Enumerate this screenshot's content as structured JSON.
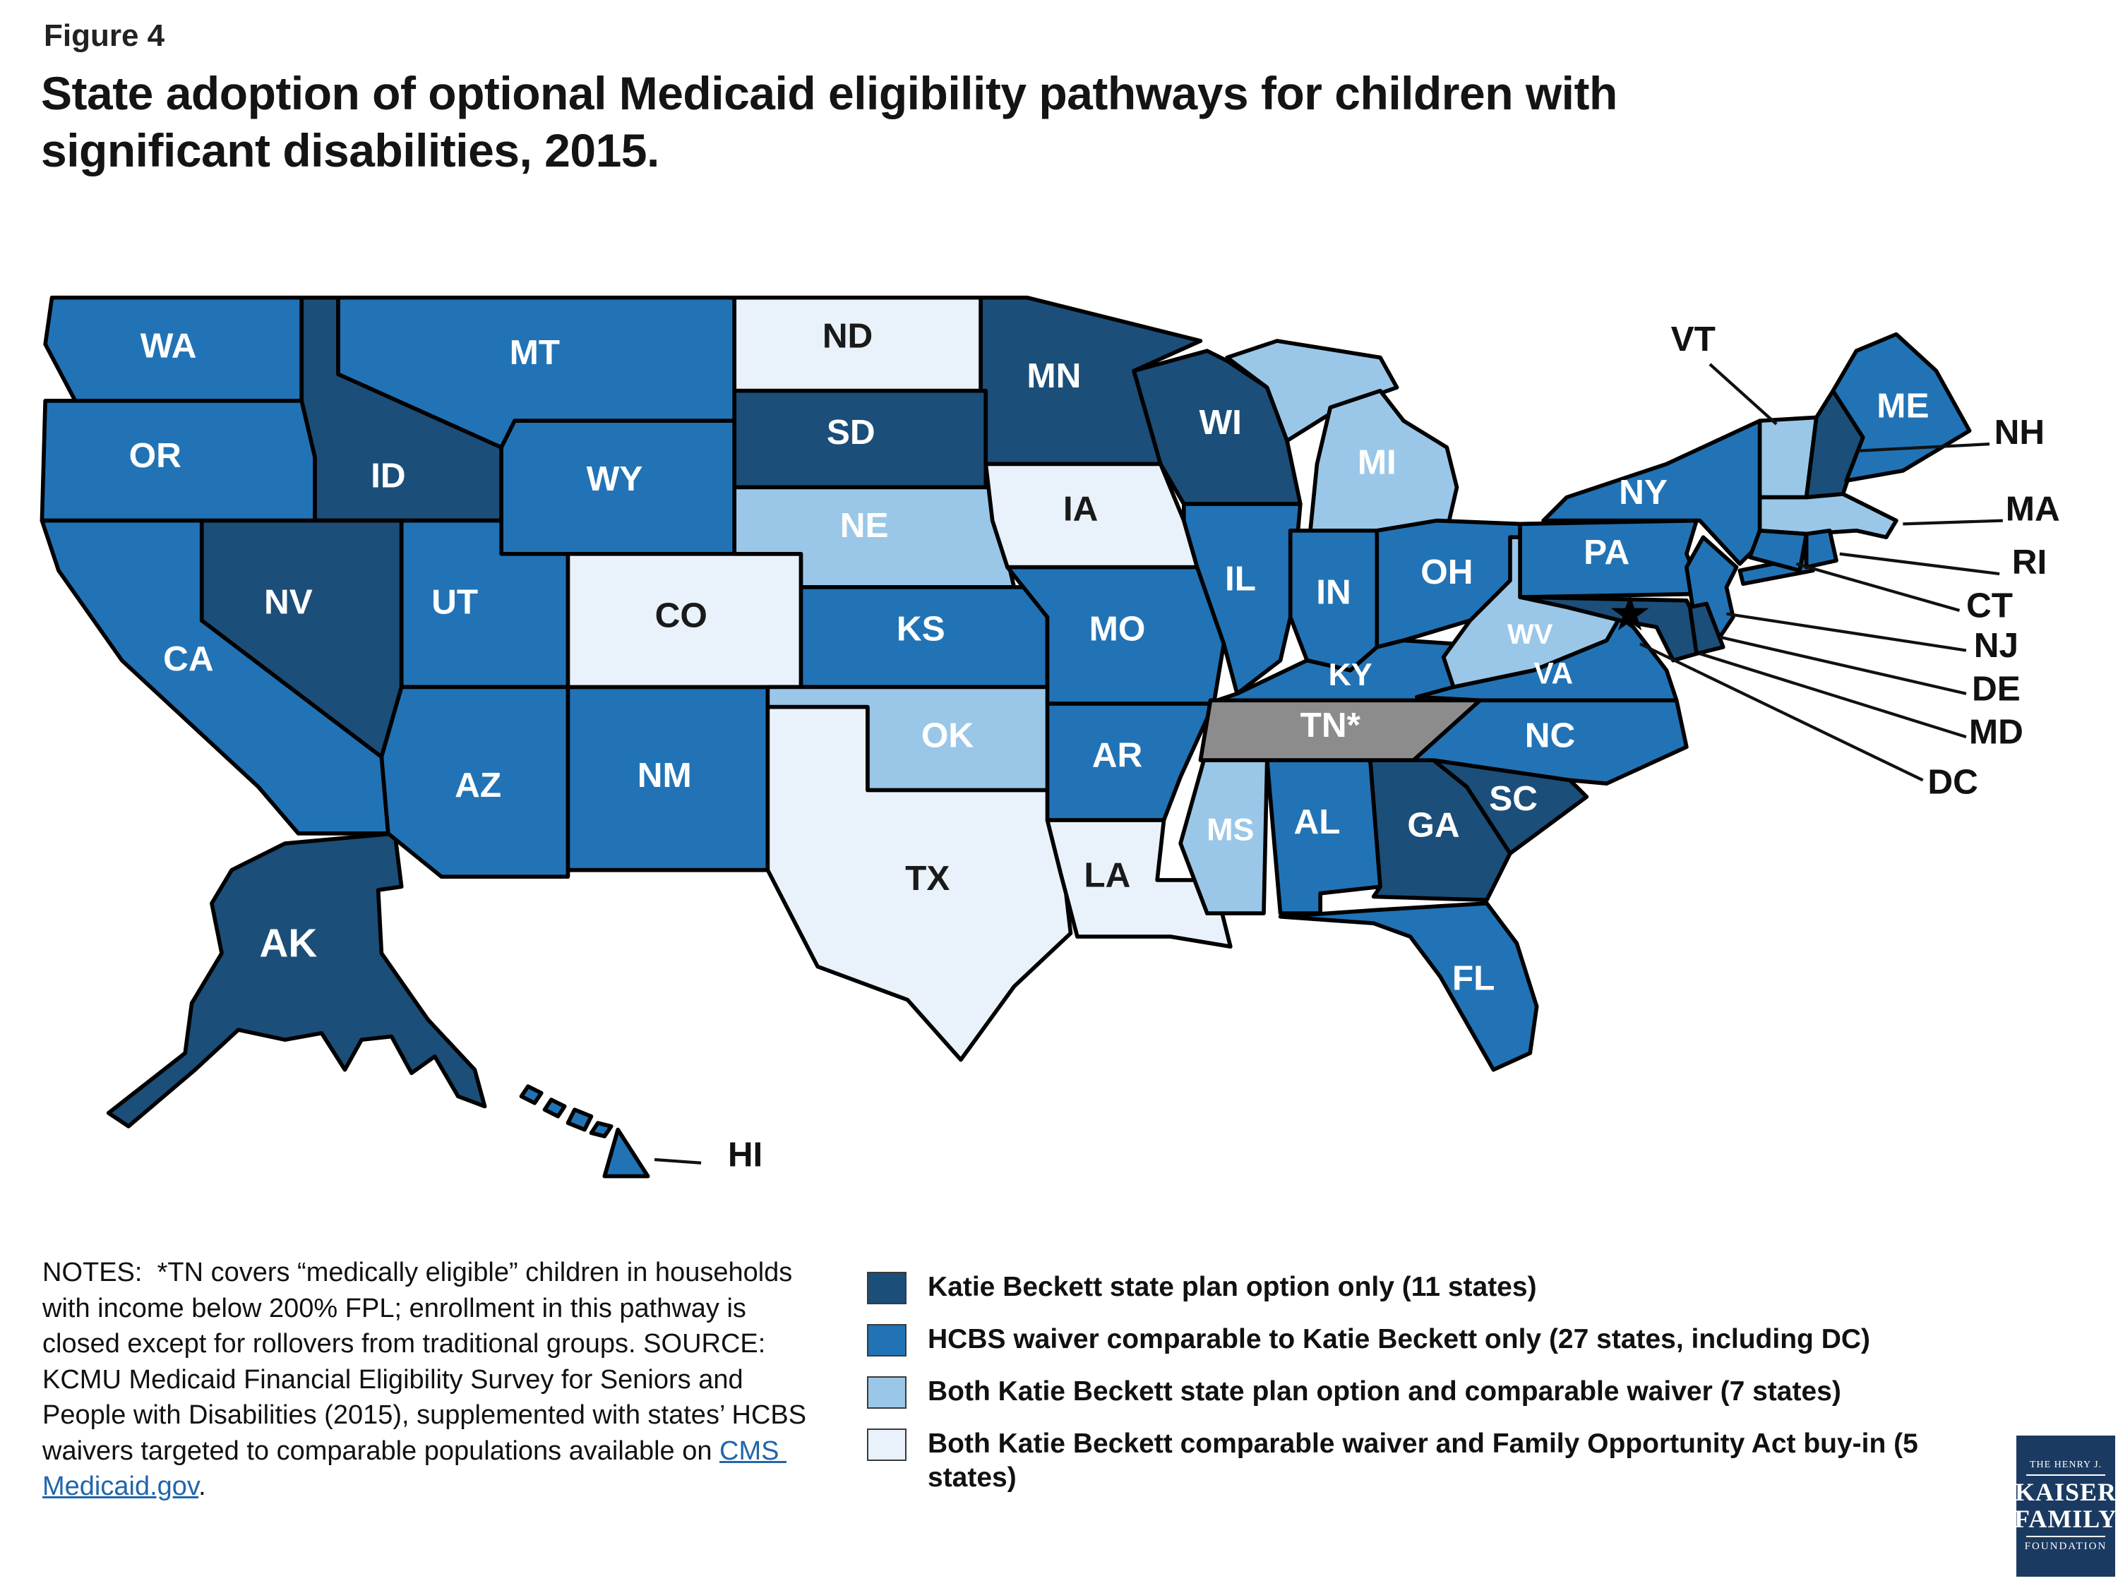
{
  "figure_label": "Figure 4",
  "title": "State adoption of optional Medicaid eligibility pathways for children with significant disabilities, 2015.",
  "colors": {
    "dark": "#1B4E79",
    "medium": "#2173B6",
    "light": "#9AC7E8",
    "pale": "#E9F2FA",
    "gray": "#8C8C8C",
    "outline": "#000000",
    "label_light": "#FFFFFF",
    "label_dark": "#1A1A1A",
    "link": "#2166AC",
    "logo_bg": "#1B3A61"
  },
  "legend": [
    {
      "category": "dark",
      "label": "Katie Beckett state plan option only (11 states)"
    },
    {
      "category": "medium",
      "label": "HCBS waiver comparable to Katie Beckett only (27 states, including DC)"
    },
    {
      "category": "light",
      "label": "Both Katie Beckett state plan option and comparable waiver (7 states)"
    },
    {
      "category": "pale",
      "label": "Both Katie Beckett comparable waiver and Family Opportunity Act buy-in (5 states)"
    }
  ],
  "notes": {
    "text": "NOTES:  *TN covers “medically eligible” children in households with income below 200% FPL; enrollment in this pathway is closed except for rollovers from traditional groups. SOURCE: KCMU Medicaid Financial Eligibility Survey for Seniors and People with Disabilities (2015), supplemented with states’ HCBS waivers targeted to comparable populations available on ",
    "link_text": "CMS Medicaid.gov",
    "suffix": "."
  },
  "logo": {
    "top": "THE HENRY J.",
    "name1": "KAISER",
    "name2": "FAMILY",
    "bottom": "FOUNDATION"
  },
  "states": [
    {
      "abbr": "WA",
      "category": "medium"
    },
    {
      "abbr": "OR",
      "category": "medium"
    },
    {
      "abbr": "CA",
      "category": "medium"
    },
    {
      "abbr": "AK",
      "category": "dark"
    },
    {
      "abbr": "HI",
      "category": "medium"
    },
    {
      "abbr": "ID",
      "category": "dark"
    },
    {
      "abbr": "NV",
      "category": "dark"
    },
    {
      "abbr": "MT",
      "category": "medium"
    },
    {
      "abbr": "WY",
      "category": "medium"
    },
    {
      "abbr": "UT",
      "category": "medium"
    },
    {
      "abbr": "AZ",
      "category": "medium"
    },
    {
      "abbr": "NM",
      "category": "medium"
    },
    {
      "abbr": "CO",
      "category": "pale"
    },
    {
      "abbr": "ND",
      "category": "pale"
    },
    {
      "abbr": "SD",
      "category": "dark"
    },
    {
      "abbr": "NE",
      "category": "light"
    },
    {
      "abbr": "KS",
      "category": "medium"
    },
    {
      "abbr": "OK",
      "category": "light"
    },
    {
      "abbr": "TX",
      "category": "pale"
    },
    {
      "abbr": "MN",
      "category": "dark"
    },
    {
      "abbr": "IA",
      "category": "pale"
    },
    {
      "abbr": "MO",
      "category": "medium"
    },
    {
      "abbr": "AR",
      "category": "medium"
    },
    {
      "abbr": "LA",
      "category": "pale"
    },
    {
      "abbr": "WI",
      "category": "dark"
    },
    {
      "abbr": "IL",
      "category": "medium"
    },
    {
      "abbr": "MI",
      "category": "light"
    },
    {
      "abbr": "IN",
      "category": "medium"
    },
    {
      "abbr": "OH",
      "category": "medium"
    },
    {
      "abbr": "KY",
      "category": "medium"
    },
    {
      "abbr": "TN",
      "category": "gray",
      "label": "TN*"
    },
    {
      "abbr": "MS",
      "category": "light"
    },
    {
      "abbr": "AL",
      "category": "medium"
    },
    {
      "abbr": "GA",
      "category": "dark"
    },
    {
      "abbr": "SC",
      "category": "dark"
    },
    {
      "abbr": "FL",
      "category": "medium"
    },
    {
      "abbr": "NC",
      "category": "medium"
    },
    {
      "abbr": "VA",
      "category": "medium"
    },
    {
      "abbr": "WV",
      "category": "light"
    },
    {
      "abbr": "PA",
      "category": "medium"
    },
    {
      "abbr": "NY",
      "category": "medium"
    },
    {
      "abbr": "NJ",
      "category": "medium"
    },
    {
      "abbr": "DE",
      "category": "dark"
    },
    {
      "abbr": "MD",
      "category": "dark"
    },
    {
      "abbr": "DC",
      "category": "medium"
    },
    {
      "abbr": "VT",
      "category": "light"
    },
    {
      "abbr": "NH",
      "category": "dark"
    },
    {
      "abbr": "MA",
      "category": "light"
    },
    {
      "abbr": "CT",
      "category": "medium"
    },
    {
      "abbr": "RI",
      "category": "medium"
    },
    {
      "abbr": "ME",
      "category": "medium"
    }
  ]
}
